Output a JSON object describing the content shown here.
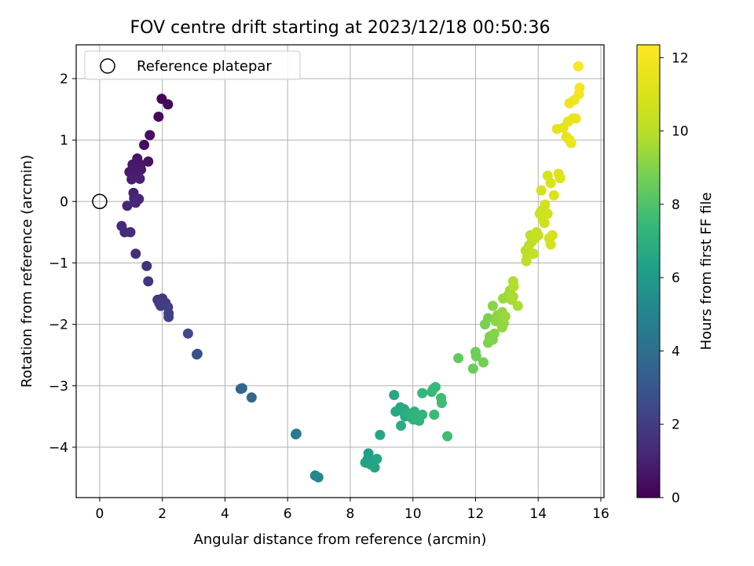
{
  "chart_data": {
    "type": "scatter",
    "title": "FOV centre drift starting at 2023/12/18 00:50:36",
    "xlabel": "Angular distance from reference (arcmin)",
    "ylabel": "Rotation from reference (arcmin)",
    "xlim": [
      -0.75,
      16.1
    ],
    "ylim": [
      -4.82,
      2.55
    ],
    "xticks": [
      0,
      2,
      4,
      6,
      8,
      10,
      12,
      14,
      16
    ],
    "yticks": [
      -4,
      -3,
      -2,
      -1,
      0,
      1,
      2
    ],
    "grid": true,
    "legend": {
      "placement": "top-left",
      "entries": [
        "Reference platepar"
      ]
    },
    "reference_point": {
      "x": 0,
      "y": 0,
      "label": "Reference platepar"
    },
    "colorbar": {
      "label": "Hours from first FF file",
      "colormap": "viridis",
      "range": [
        0,
        12.35
      ],
      "ticks": [
        0,
        2,
        4,
        6,
        8,
        10,
        12
      ]
    },
    "points": [
      [
        1.98,
        1.67,
        0.1
      ],
      [
        2.18,
        1.58,
        0.15
      ],
      [
        1.88,
        1.38,
        0.25
      ],
      [
        1.6,
        1.08,
        0.4
      ],
      [
        1.42,
        0.92,
        0.45
      ],
      [
        1.55,
        0.65,
        0.55
      ],
      [
        1.2,
        0.7,
        0.6
      ],
      [
        1.3,
        0.6,
        0.65
      ],
      [
        1.05,
        0.6,
        0.7
      ],
      [
        1.32,
        0.52,
        0.75
      ],
      [
        1.15,
        0.52,
        0.8
      ],
      [
        0.95,
        0.48,
        0.85
      ],
      [
        1.22,
        0.42,
        0.9
      ],
      [
        1.02,
        0.36,
        0.95
      ],
      [
        1.28,
        0.37,
        1.0
      ],
      [
        1.08,
        0.14,
        1.05
      ],
      [
        1.25,
        0.04,
        1.1
      ],
      [
        1.1,
        0.05,
        1.15
      ],
      [
        1.15,
        -0.02,
        1.2
      ],
      [
        0.88,
        -0.07,
        1.25
      ],
      [
        0.7,
        -0.4,
        1.3
      ],
      [
        0.8,
        -0.5,
        1.35
      ],
      [
        0.98,
        -0.5,
        1.4
      ],
      [
        1.15,
        -0.85,
        1.5
      ],
      [
        1.5,
        -1.05,
        1.6
      ],
      [
        1.55,
        -1.3,
        1.7
      ],
      [
        1.85,
        -1.6,
        1.8
      ],
      [
        2.0,
        -1.58,
        1.85
      ],
      [
        1.9,
        -1.65,
        1.9
      ],
      [
        2.1,
        -1.65,
        1.95
      ],
      [
        1.95,
        -1.7,
        2.0
      ],
      [
        2.18,
        -1.72,
        2.05
      ],
      [
        2.2,
        -1.82,
        2.1
      ],
      [
        2.2,
        -1.88,
        2.15
      ],
      [
        2.82,
        -2.15,
        2.5
      ],
      [
        3.12,
        -2.48,
        2.75
      ],
      [
        3.1,
        -2.49,
        2.8
      ],
      [
        4.5,
        -3.05,
        3.6
      ],
      [
        4.55,
        -3.04,
        3.65
      ],
      [
        4.85,
        -3.19,
        3.75
      ],
      [
        6.28,
        -3.78,
        4.6
      ],
      [
        6.26,
        -3.79,
        4.65
      ],
      [
        6.88,
        -4.46,
        5.05
      ],
      [
        6.98,
        -4.49,
        5.1
      ],
      [
        8.58,
        -4.1,
        6.2
      ],
      [
        8.55,
        -4.2,
        6.25
      ],
      [
        8.6,
        -4.26,
        6.3
      ],
      [
        8.48,
        -4.25,
        6.35
      ],
      [
        8.65,
        -4.28,
        6.4
      ],
      [
        8.78,
        -4.33,
        6.45
      ],
      [
        8.85,
        -4.19,
        6.5
      ],
      [
        8.95,
        -3.8,
        6.55
      ],
      [
        9.4,
        -3.15,
        6.6
      ],
      [
        9.45,
        -3.42,
        6.65
      ],
      [
        9.6,
        -3.35,
        6.7
      ],
      [
        9.68,
        -3.42,
        6.75
      ],
      [
        9.72,
        -3.38,
        6.8
      ],
      [
        9.75,
        -3.5,
        6.85
      ],
      [
        9.62,
        -3.65,
        6.9
      ],
      [
        9.85,
        -3.45,
        6.95
      ],
      [
        9.95,
        -3.52,
        7.0
      ],
      [
        10.05,
        -3.42,
        7.05
      ],
      [
        10.08,
        -3.5,
        7.1
      ],
      [
        10.02,
        -3.55,
        7.15
      ],
      [
        10.15,
        -3.48,
        7.2
      ],
      [
        10.2,
        -3.57,
        7.25
      ],
      [
        10.3,
        -3.47,
        7.3
      ],
      [
        10.3,
        -3.12,
        7.35
      ],
      [
        10.6,
        -3.1,
        7.4
      ],
      [
        10.65,
        -3.05,
        7.45
      ],
      [
        10.72,
        -3.02,
        7.5
      ],
      [
        10.68,
        -3.47,
        7.55
      ],
      [
        10.9,
        -3.2,
        7.6
      ],
      [
        10.92,
        -3.28,
        7.65
      ],
      [
        11.1,
        -3.82,
        7.7
      ],
      [
        11.45,
        -2.55,
        8.45
      ],
      [
        11.92,
        -2.72,
        8.55
      ],
      [
        12.0,
        -2.45,
        8.6
      ],
      [
        12.02,
        -2.52,
        8.65
      ],
      [
        12.25,
        -2.62,
        8.7
      ],
      [
        12.3,
        -2.0,
        8.8
      ],
      [
        12.4,
        -1.9,
        8.85
      ],
      [
        12.45,
        -2.2,
        8.9
      ],
      [
        12.4,
        -2.3,
        8.95
      ],
      [
        12.55,
        -2.25,
        9.0
      ],
      [
        12.6,
        -2.15,
        9.05
      ],
      [
        12.55,
        -1.7,
        9.1
      ],
      [
        12.7,
        -1.85,
        9.15
      ],
      [
        12.65,
        -1.95,
        9.2
      ],
      [
        12.85,
        -1.8,
        9.25
      ],
      [
        12.85,
        -2.05,
        9.3
      ],
      [
        12.9,
        -1.98,
        9.35
      ],
      [
        12.95,
        -1.87,
        9.4
      ],
      [
        12.88,
        -1.58,
        9.45
      ],
      [
        13.05,
        -1.52,
        9.5
      ],
      [
        13.1,
        -1.45,
        9.55
      ],
      [
        13.15,
        -1.6,
        9.6
      ],
      [
        13.2,
        -1.55,
        9.65
      ],
      [
        13.35,
        -1.7,
        9.7
      ],
      [
        13.2,
        -1.3,
        9.8
      ],
      [
        13.22,
        -1.38,
        9.85
      ],
      [
        13.6,
        -0.8,
        10.0
      ],
      [
        13.65,
        -0.9,
        10.05
      ],
      [
        13.7,
        -0.72,
        10.1
      ],
      [
        13.62,
        -0.97,
        10.15
      ],
      [
        13.75,
        -0.55,
        10.2
      ],
      [
        13.8,
        -0.65,
        10.25
      ],
      [
        13.85,
        -0.85,
        10.3
      ],
      [
        13.9,
        -0.6,
        10.35
      ],
      [
        13.95,
        -0.5,
        10.4
      ],
      [
        14.0,
        -0.55,
        10.45
      ],
      [
        14.05,
        -0.2,
        10.5
      ],
      [
        14.1,
        -0.15,
        10.55
      ],
      [
        14.15,
        -0.3,
        10.6
      ],
      [
        14.2,
        -0.35,
        10.65
      ],
      [
        14.22,
        -0.05,
        10.7
      ],
      [
        14.3,
        -0.2,
        10.75
      ],
      [
        14.35,
        -0.6,
        10.8
      ],
      [
        14.4,
        -0.7,
        10.85
      ],
      [
        14.45,
        -0.55,
        10.9
      ],
      [
        14.1,
        0.18,
        10.95
      ],
      [
        14.3,
        0.42,
        11.0
      ],
      [
        14.4,
        0.3,
        11.05
      ],
      [
        14.5,
        0.1,
        11.1
      ],
      [
        14.65,
        0.45,
        11.15
      ],
      [
        14.7,
        0.38,
        11.2
      ],
      [
        14.6,
        1.18,
        11.35
      ],
      [
        14.8,
        1.2,
        11.4
      ],
      [
        14.9,
        1.05,
        11.45
      ],
      [
        14.95,
        1.3,
        11.5
      ],
      [
        15.0,
        1.0,
        11.55
      ],
      [
        15.05,
        0.95,
        11.6
      ],
      [
        15.1,
        1.35,
        11.65
      ],
      [
        15.2,
        1.35,
        11.7
      ],
      [
        15.0,
        1.6,
        11.8
      ],
      [
        15.15,
        1.65,
        11.85
      ],
      [
        15.3,
        1.75,
        11.9
      ],
      [
        15.32,
        1.85,
        11.95
      ],
      [
        15.28,
        2.2,
        12.2
      ]
    ]
  }
}
